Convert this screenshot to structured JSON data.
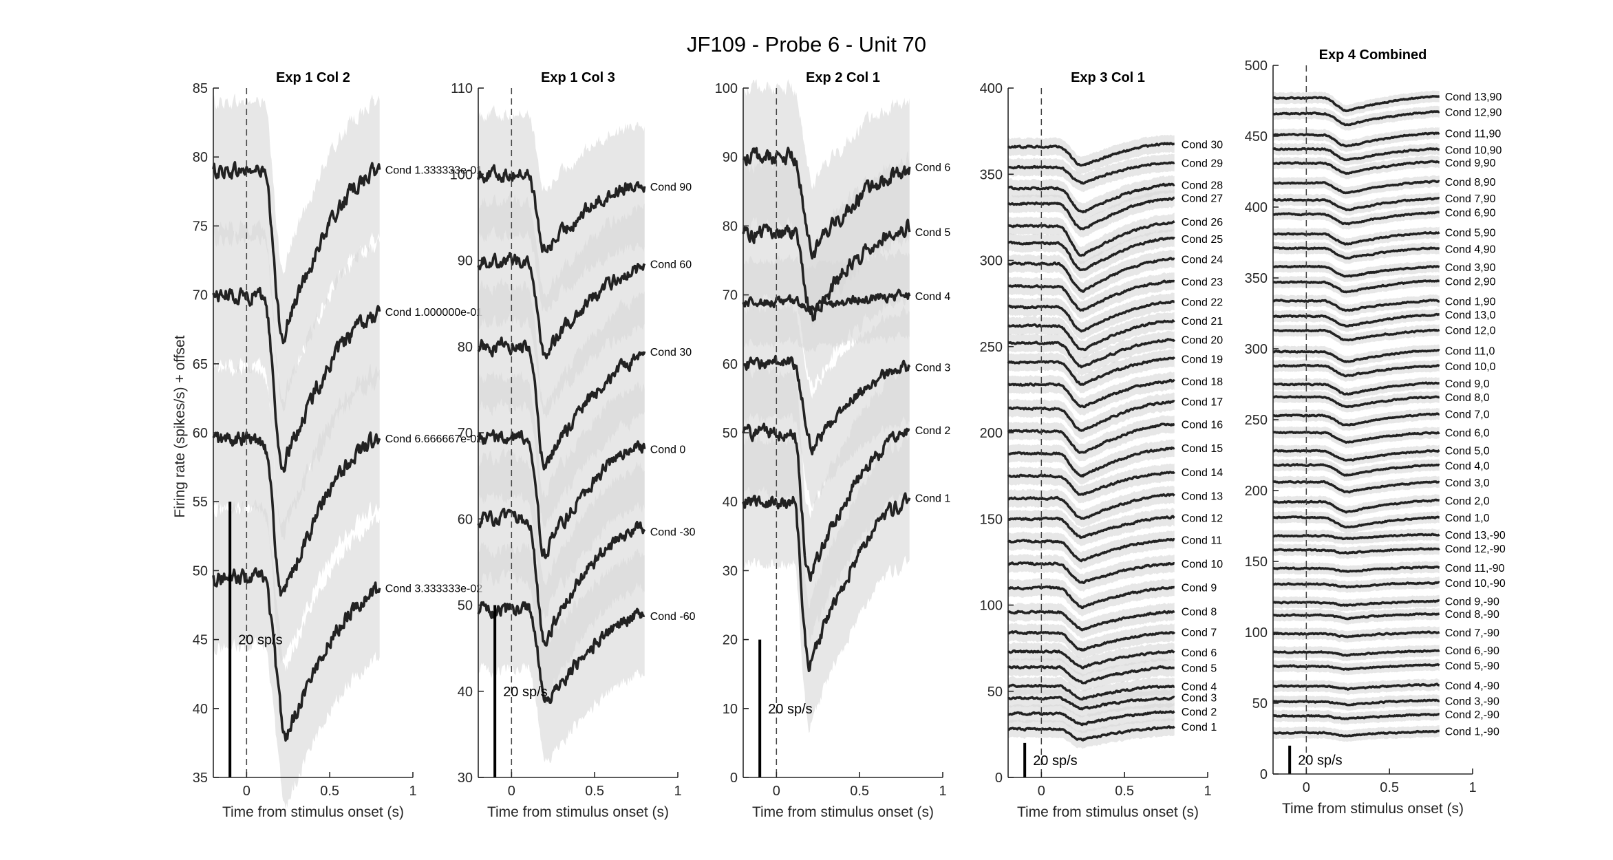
{
  "figure_title": "JF109 - Probe 6 - Unit 70",
  "ylabel": "Firing rate (spikes/s) + offset",
  "xlabel": "Time from stimulus onset (s)",
  "scale_label": "20 sp/s",
  "colors": {
    "trace": "#222222",
    "band": "#d9d9d9",
    "axis": "#262626"
  },
  "chart_data": [
    {
      "type": "line",
      "title": "Exp 1 Col 2",
      "xlabel": "Time from stimulus onset (s)",
      "ylabel": "Firing rate (spikes/s) + offset",
      "xlim": [
        -0.2,
        1
      ],
      "ylim": [
        35,
        85
      ],
      "xticks": [
        "0",
        "0.5",
        "1"
      ],
      "yticks": [
        "35",
        "40",
        "45",
        "50",
        "55",
        "60",
        "65",
        "70",
        "75",
        "80",
        "85"
      ],
      "onset_marker_x": 0,
      "scale_bar": {
        "x": -0.1,
        "y_bottom": 35,
        "y_top": 55,
        "label": "20 sp/s"
      },
      "series": [
        {
          "name": "Cond 1.333333e-01",
          "baseline": 79,
          "end": 79,
          "min": 67,
          "min_t": 0.22,
          "band": 5
        },
        {
          "name": "Cond 1.000000e-01",
          "baseline": 70,
          "end": 68.5,
          "min": 57.5,
          "min_t": 0.22,
          "band": 5
        },
        {
          "name": "Cond 6.666667e-02",
          "baseline": 59.5,
          "end": 59.5,
          "min": 48,
          "min_t": 0.22,
          "band": 5
        },
        {
          "name": "Cond 3.333333e-02",
          "baseline": 49.5,
          "end": 48.5,
          "min": 38,
          "min_t": 0.24,
          "band": 5
        }
      ]
    },
    {
      "type": "line",
      "title": "Exp 1 Col 3",
      "xlabel": "Time from stimulus onset (s)",
      "ylabel": "",
      "xlim": [
        -0.2,
        1
      ],
      "ylim": [
        30,
        110
      ],
      "xticks": [
        "0",
        "0.5",
        "1"
      ],
      "yticks": [
        "30",
        "40",
        "50",
        "60",
        "70",
        "80",
        "90",
        "100",
        "110"
      ],
      "onset_marker_x": 0,
      "scale_bar": {
        "x": -0.1,
        "y_bottom": 30,
        "y_top": 50,
        "label": "20 sp/s"
      },
      "series": [
        {
          "name": "Cond 90",
          "baseline": 100,
          "end": 99,
          "min": 91,
          "min_t": 0.2,
          "band": 7
        },
        {
          "name": "Cond 60",
          "baseline": 90,
          "end": 89,
          "min": 79,
          "min_t": 0.2,
          "band": 7
        },
        {
          "name": "Cond 30",
          "baseline": 80,
          "end": 78.5,
          "min": 66,
          "min_t": 0.2,
          "band": 7
        },
        {
          "name": "Cond 0",
          "baseline": 69.5,
          "end": 68.5,
          "min": 56,
          "min_t": 0.2,
          "band": 7
        },
        {
          "name": "Cond -30",
          "baseline": 60,
          "end": 59,
          "min": 46,
          "min_t": 0.2,
          "band": 7
        },
        {
          "name": "Cond -60",
          "baseline": 49.5,
          "end": 49,
          "min": 38.5,
          "min_t": 0.22,
          "band": 7
        }
      ]
    },
    {
      "type": "line",
      "title": "Exp 2 Col 1",
      "xlabel": "Time from stimulus onset (s)",
      "ylabel": "",
      "xlim": [
        -0.2,
        1
      ],
      "ylim": [
        0,
        100
      ],
      "xticks": [
        "0",
        "0.5",
        "1"
      ],
      "yticks": [
        "0",
        "10",
        "20",
        "30",
        "40",
        "50",
        "60",
        "70",
        "80",
        "90",
        "100"
      ],
      "onset_marker_x": 0,
      "scale_bar": {
        "x": -0.1,
        "y_bottom": 0,
        "y_top": 20,
        "label": "20 sp/s"
      },
      "series": [
        {
          "name": "Cond 6",
          "baseline": 90,
          "end": 88,
          "min": 76,
          "min_t": 0.22,
          "band": 10
        },
        {
          "name": "Cond 5",
          "baseline": 79,
          "end": 80,
          "min": 67,
          "min_t": 0.22,
          "band": 10
        },
        {
          "name": "Cond 4",
          "baseline": 69,
          "end": 70,
          "min": 68,
          "min_t": 0.2,
          "band": 6
        },
        {
          "name": "Cond 3",
          "baseline": 60,
          "end": 59.5,
          "min": 48,
          "min_t": 0.22,
          "band": 8
        },
        {
          "name": "Cond 2",
          "baseline": 50,
          "end": 50,
          "min": 29,
          "min_t": 0.2,
          "band": 9
        },
        {
          "name": "Cond 1",
          "baseline": 40,
          "end": 40,
          "min": 16,
          "min_t": 0.2,
          "band": 9
        }
      ]
    },
    {
      "type": "line",
      "title": "Exp 3 Col 1",
      "xlabel": "Time from stimulus onset (s)",
      "ylabel": "",
      "xlim": [
        -0.2,
        1
      ],
      "ylim": [
        0,
        400
      ],
      "xticks": [
        "0",
        "0.5",
        "1"
      ],
      "yticks": [
        "0",
        "50",
        "100",
        "150",
        "200",
        "250",
        "300",
        "350",
        "400"
      ],
      "onset_marker_x": 0,
      "scale_bar": {
        "x": -0.1,
        "y_bottom": 0,
        "y_top": 20,
        "label": "20 sp/s"
      },
      "series": [
        {
          "name": "Cond 30",
          "baseline": 366,
          "end": 368,
          "min": 355,
          "min_t": 0.25,
          "band": 5
        },
        {
          "name": "Cond 29",
          "baseline": 354,
          "end": 357,
          "min": 345,
          "min_t": 0.25,
          "band": 5
        },
        {
          "name": "Cond 28",
          "baseline": 342,
          "end": 344,
          "min": 328,
          "min_t": 0.25,
          "band": 5
        },
        {
          "name": "Cond 27",
          "baseline": 333,
          "end": 336,
          "min": 318,
          "min_t": 0.25,
          "band": 5
        },
        {
          "name": "Cond 26",
          "baseline": 320,
          "end": 322,
          "min": 303,
          "min_t": 0.25,
          "band": 5
        },
        {
          "name": "Cond 25",
          "baseline": 310,
          "end": 313,
          "min": 294,
          "min_t": 0.25,
          "band": 5
        },
        {
          "name": "Cond 24",
          "baseline": 298,
          "end": 301,
          "min": 282,
          "min_t": 0.25,
          "band": 5
        },
        {
          "name": "Cond 23",
          "baseline": 285,
          "end": 288,
          "min": 271,
          "min_t": 0.25,
          "band": 5
        },
        {
          "name": "Cond 22",
          "baseline": 273,
          "end": 276,
          "min": 259,
          "min_t": 0.25,
          "band": 5
        },
        {
          "name": "Cond 21",
          "baseline": 262,
          "end": 265,
          "min": 248,
          "min_t": 0.25,
          "band": 5
        },
        {
          "name": "Cond 20",
          "baseline": 252,
          "end": 254,
          "min": 238,
          "min_t": 0.25,
          "band": 5
        },
        {
          "name": "Cond 19",
          "baseline": 241,
          "end": 243,
          "min": 228,
          "min_t": 0.25,
          "band": 5
        },
        {
          "name": "Cond 18",
          "baseline": 228,
          "end": 230,
          "min": 215,
          "min_t": 0.25,
          "band": 5
        },
        {
          "name": "Cond 17",
          "baseline": 214,
          "end": 218,
          "min": 201,
          "min_t": 0.25,
          "band": 5
        },
        {
          "name": "Cond 16",
          "baseline": 201,
          "end": 205,
          "min": 188,
          "min_t": 0.25,
          "band": 5
        },
        {
          "name": "Cond 15",
          "baseline": 188,
          "end": 191,
          "min": 175,
          "min_t": 0.25,
          "band": 5
        },
        {
          "name": "Cond 14",
          "baseline": 175,
          "end": 177,
          "min": 164,
          "min_t": 0.25,
          "band": 5
        },
        {
          "name": "Cond 13",
          "baseline": 162,
          "end": 164,
          "min": 150,
          "min_t": 0.25,
          "band": 5
        },
        {
          "name": "Cond 12",
          "baseline": 150,
          "end": 151,
          "min": 139,
          "min_t": 0.25,
          "band": 5
        },
        {
          "name": "Cond 11",
          "baseline": 137,
          "end": 138,
          "min": 126,
          "min_t": 0.25,
          "band": 5
        },
        {
          "name": "Cond 10",
          "baseline": 124,
          "end": 124,
          "min": 113,
          "min_t": 0.25,
          "band": 5
        },
        {
          "name": "Cond 9",
          "baseline": 110,
          "end": 110,
          "min": 99,
          "min_t": 0.25,
          "band": 5
        },
        {
          "name": "Cond 8",
          "baseline": 96,
          "end": 96,
          "min": 86,
          "min_t": 0.25,
          "band": 5
        },
        {
          "name": "Cond 7",
          "baseline": 84,
          "end": 84,
          "min": 74,
          "min_t": 0.25,
          "band": 5
        },
        {
          "name": "Cond 6",
          "baseline": 73,
          "end": 73,
          "min": 64,
          "min_t": 0.25,
          "band": 5
        },
        {
          "name": "Cond 5",
          "baseline": 64,
          "end": 64,
          "min": 55,
          "min_t": 0.25,
          "band": 5
        },
        {
          "name": "Cond 4",
          "baseline": 53,
          "end": 53,
          "min": 46,
          "min_t": 0.25,
          "band": 5
        },
        {
          "name": "Cond 3",
          "baseline": 46,
          "end": 46,
          "min": 40,
          "min_t": 0.25,
          "band": 5
        },
        {
          "name": "Cond 2",
          "baseline": 37,
          "end": 38,
          "min": 31,
          "min_t": 0.25,
          "band": 5
        },
        {
          "name": "Cond 1",
          "baseline": 28,
          "end": 29,
          "min": 22,
          "min_t": 0.25,
          "band": 5
        }
      ]
    },
    {
      "type": "line",
      "title": "Exp 4 Combined",
      "xlabel": "Time from stimulus onset (s)",
      "ylabel": "",
      "xlim": [
        -0.2,
        1
      ],
      "ylim": [
        0,
        500
      ],
      "xticks": [
        "0",
        "0.5",
        "1"
      ],
      "yticks": [
        "0",
        "50",
        "100",
        "150",
        "200",
        "250",
        "300",
        "350",
        "400",
        "450",
        "500"
      ],
      "onset_marker_x": 0,
      "scale_bar": {
        "x": -0.1,
        "y_bottom": 0,
        "y_top": 20,
        "label": "20 sp/s"
      },
      "series": [
        {
          "name": "Cond 13,90",
          "baseline": 477,
          "end": 478,
          "min": 468,
          "min_t": 0.25,
          "band": 4
        },
        {
          "name": "Cond 12,90",
          "baseline": 466,
          "end": 467,
          "min": 458,
          "min_t": 0.25,
          "band": 4
        },
        {
          "name": "Cond 11,90",
          "baseline": 451,
          "end": 452,
          "min": 443,
          "min_t": 0.25,
          "band": 4
        },
        {
          "name": "Cond 10,90",
          "baseline": 441,
          "end": 441,
          "min": 433,
          "min_t": 0.25,
          "band": 4
        },
        {
          "name": "Cond 9,90",
          "baseline": 431,
          "end": 432,
          "min": 424,
          "min_t": 0.25,
          "band": 4
        },
        {
          "name": "Cond 8,90",
          "baseline": 417,
          "end": 418,
          "min": 410,
          "min_t": 0.25,
          "band": 4
        },
        {
          "name": "Cond 7,90",
          "baseline": 405,
          "end": 406,
          "min": 398,
          "min_t": 0.25,
          "band": 4
        },
        {
          "name": "Cond 6,90",
          "baseline": 395,
          "end": 396,
          "min": 388,
          "min_t": 0.25,
          "band": 4
        },
        {
          "name": "Cond 5,90",
          "baseline": 381,
          "end": 382,
          "min": 374,
          "min_t": 0.25,
          "band": 4
        },
        {
          "name": "Cond 4,90",
          "baseline": 371,
          "end": 371,
          "min": 364,
          "min_t": 0.25,
          "band": 4
        },
        {
          "name": "Cond 3,90",
          "baseline": 358,
          "end": 358,
          "min": 351,
          "min_t": 0.25,
          "band": 4
        },
        {
          "name": "Cond 2,90",
          "baseline": 347,
          "end": 348,
          "min": 340,
          "min_t": 0.25,
          "band": 4
        },
        {
          "name": "Cond 1,90",
          "baseline": 334,
          "end": 334,
          "min": 327,
          "min_t": 0.25,
          "band": 4
        },
        {
          "name": "Cond 13,0",
          "baseline": 323,
          "end": 324,
          "min": 316,
          "min_t": 0.25,
          "band": 4
        },
        {
          "name": "Cond 12,0",
          "baseline": 313,
          "end": 313,
          "min": 306,
          "min_t": 0.25,
          "band": 4
        },
        {
          "name": "Cond 11,0",
          "baseline": 298,
          "end": 299,
          "min": 291,
          "min_t": 0.25,
          "band": 4
        },
        {
          "name": "Cond 10,0",
          "baseline": 288,
          "end": 288,
          "min": 281,
          "min_t": 0.25,
          "band": 4
        },
        {
          "name": "Cond 9,0",
          "baseline": 275,
          "end": 276,
          "min": 268,
          "min_t": 0.25,
          "band": 4
        },
        {
          "name": "Cond 8,0",
          "baseline": 266,
          "end": 266,
          "min": 259,
          "min_t": 0.25,
          "band": 4
        },
        {
          "name": "Cond 7,0",
          "baseline": 253,
          "end": 254,
          "min": 246,
          "min_t": 0.25,
          "band": 4
        },
        {
          "name": "Cond 6,0",
          "baseline": 241,
          "end": 241,
          "min": 234,
          "min_t": 0.25,
          "band": 4
        },
        {
          "name": "Cond 5,0",
          "baseline": 228,
          "end": 228,
          "min": 221,
          "min_t": 0.25,
          "band": 4
        },
        {
          "name": "Cond 4,0",
          "baseline": 218,
          "end": 218,
          "min": 211,
          "min_t": 0.25,
          "band": 4
        },
        {
          "name": "Cond 3,0",
          "baseline": 206,
          "end": 206,
          "min": 199,
          "min_t": 0.25,
          "band": 4
        },
        {
          "name": "Cond 2,0",
          "baseline": 192,
          "end": 193,
          "min": 185,
          "min_t": 0.25,
          "band": 4
        },
        {
          "name": "Cond 1,0",
          "baseline": 181,
          "end": 181,
          "min": 174,
          "min_t": 0.25,
          "band": 4
        },
        {
          "name": "Cond 13,-90",
          "baseline": 168,
          "end": 169,
          "min": 166,
          "min_t": 0.25,
          "band": 4
        },
        {
          "name": "Cond 12,-90",
          "baseline": 158,
          "end": 159,
          "min": 156,
          "min_t": 0.25,
          "band": 4
        },
        {
          "name": "Cond 11,-90",
          "baseline": 145,
          "end": 146,
          "min": 143,
          "min_t": 0.25,
          "band": 4
        },
        {
          "name": "Cond 10,-90",
          "baseline": 134,
          "end": 135,
          "min": 132,
          "min_t": 0.25,
          "band": 4
        },
        {
          "name": "Cond 9,-90",
          "baseline": 121,
          "end": 122,
          "min": 119,
          "min_t": 0.25,
          "band": 4
        },
        {
          "name": "Cond 8,-90",
          "baseline": 112,
          "end": 113,
          "min": 110,
          "min_t": 0.25,
          "band": 4
        },
        {
          "name": "Cond 7,-90",
          "baseline": 99,
          "end": 100,
          "min": 97,
          "min_t": 0.25,
          "band": 4
        },
        {
          "name": "Cond 6,-90",
          "baseline": 86,
          "end": 87,
          "min": 84,
          "min_t": 0.25,
          "band": 4
        },
        {
          "name": "Cond 5,-90",
          "baseline": 76,
          "end": 77,
          "min": 74,
          "min_t": 0.25,
          "band": 4
        },
        {
          "name": "Cond 4,-90",
          "baseline": 62,
          "end": 63,
          "min": 60,
          "min_t": 0.25,
          "band": 4
        },
        {
          "name": "Cond 3,-90",
          "baseline": 51,
          "end": 52,
          "min": 49,
          "min_t": 0.25,
          "band": 4
        },
        {
          "name": "Cond 2,-90",
          "baseline": 41,
          "end": 42,
          "min": 39,
          "min_t": 0.25,
          "band": 4
        },
        {
          "name": "Cond 1,-90",
          "baseline": 29,
          "end": 30,
          "min": 27,
          "min_t": 0.25,
          "band": 4
        }
      ]
    }
  ]
}
